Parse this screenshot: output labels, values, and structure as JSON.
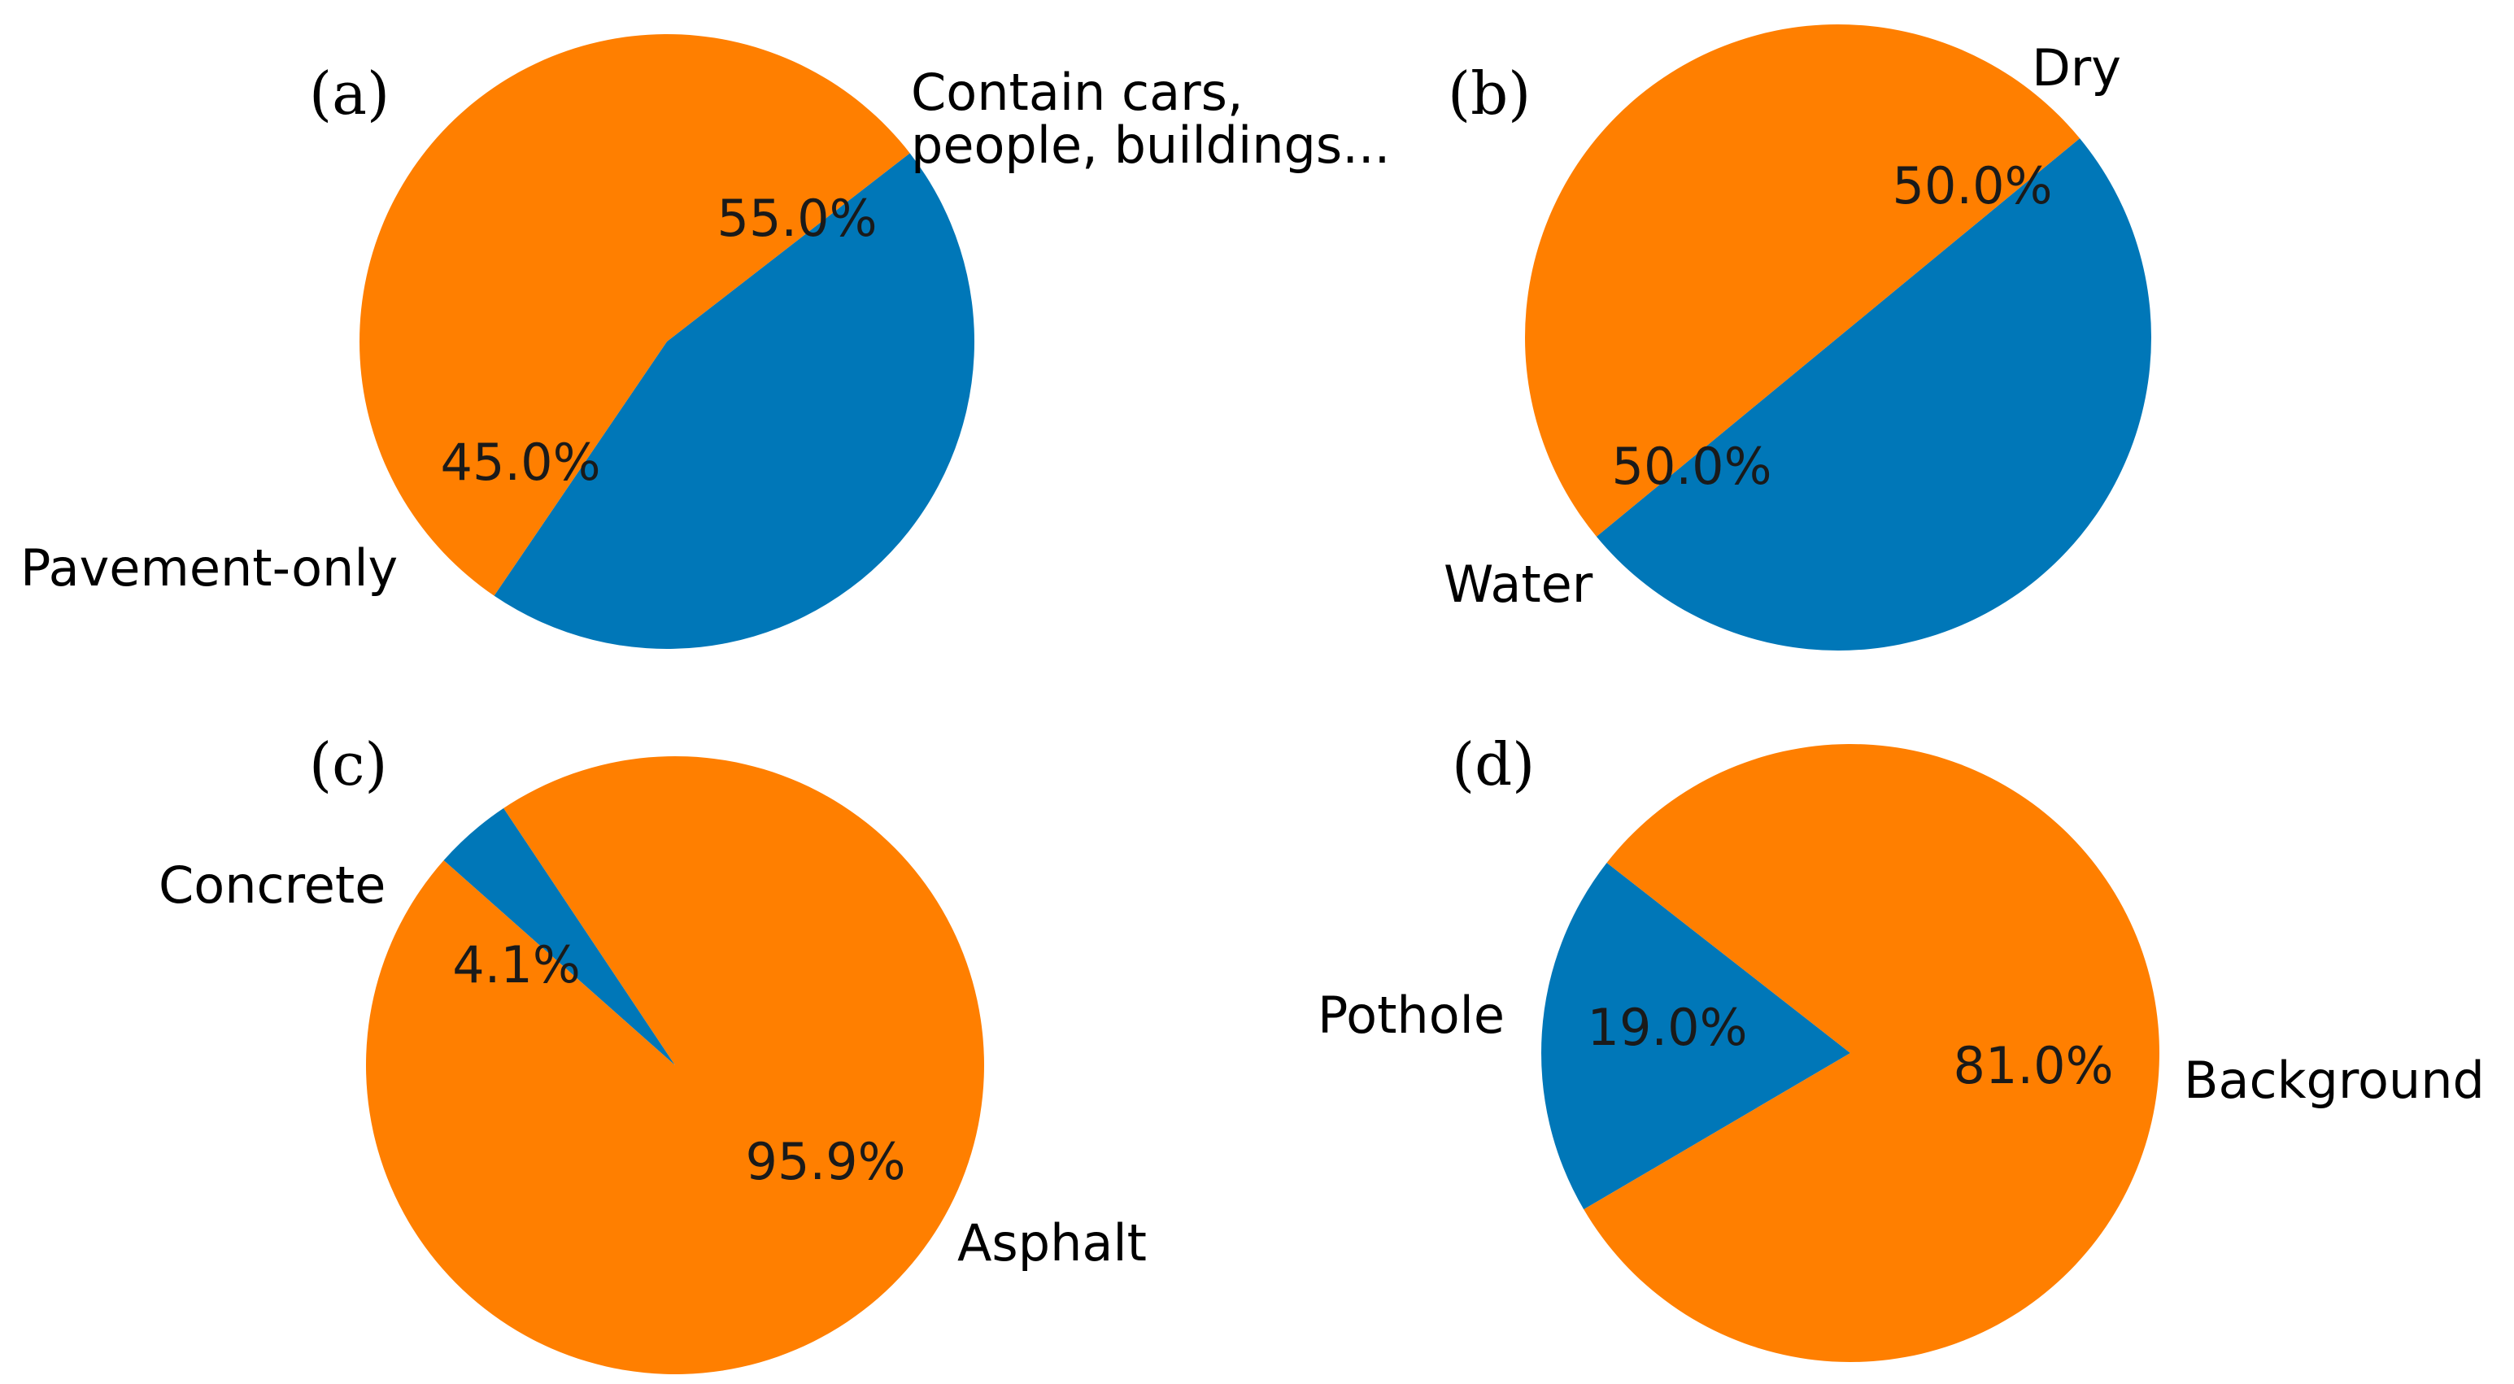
{
  "colors": {
    "series_a": "#0077b8",
    "series_b": "#ff7f00",
    "text": "#000000"
  },
  "chart_data": [
    {
      "type": "pie",
      "panel": "(a)",
      "slices": [
        {
          "label": "Pavement-only",
          "value": 45.0,
          "pct_text": "45.0%",
          "color": "#0077b8"
        },
        {
          "label": "Contain cars,\npeople, buildings...",
          "value": 55.0,
          "pct_text": "55.0%",
          "color": "#ff7f00"
        }
      ]
    },
    {
      "type": "pie",
      "panel": "(b)",
      "slices": [
        {
          "label": "Water",
          "value": 50.0,
          "pct_text": "50.0%",
          "color": "#0077b8"
        },
        {
          "label": "Dry",
          "value": 50.0,
          "pct_text": "50.0%",
          "color": "#ff7f00"
        }
      ]
    },
    {
      "type": "pie",
      "panel": "(c)",
      "slices": [
        {
          "label": "Concrete",
          "value": 4.1,
          "pct_text": "4.1%",
          "color": "#0077b8"
        },
        {
          "label": "Asphalt",
          "value": 95.9,
          "pct_text": "95.9%",
          "color": "#ff7f00"
        }
      ]
    },
    {
      "type": "pie",
      "panel": "(d)",
      "slices": [
        {
          "label": "Pothole",
          "value": 19.0,
          "pct_text": "19.0%",
          "color": "#0077b8"
        },
        {
          "label": "Background",
          "value": 81.0,
          "pct_text": "81.0%",
          "color": "#ff7f00"
        }
      ]
    }
  ]
}
